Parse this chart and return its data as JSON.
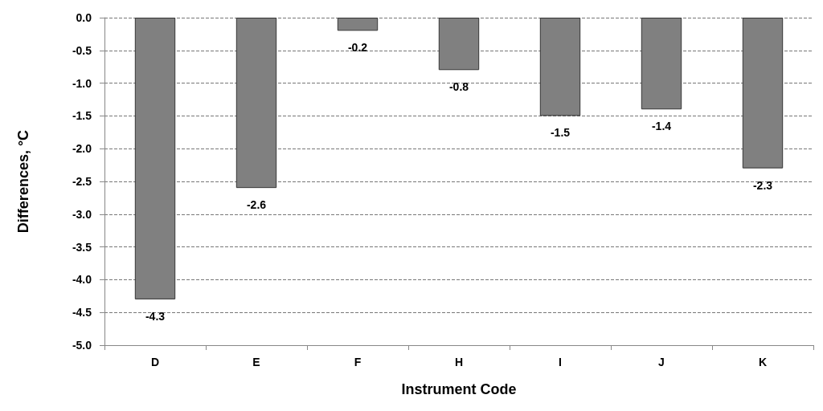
{
  "chart_data": {
    "type": "bar",
    "xlabel": "Instrument Code",
    "ylabel": "Differences, °C",
    "categories": [
      "D",
      "E",
      "F",
      "H",
      "I",
      "J",
      "K"
    ],
    "values": [
      -4.3,
      -2.6,
      -0.2,
      -0.8,
      -1.5,
      -1.4,
      -2.3
    ],
    "color": "#808080",
    "data_labels": true,
    "ylim": [
      -5,
      0
    ],
    "yticks": [
      {
        "value": -5,
        "label": "-5.0"
      },
      {
        "value": -4.5,
        "label": "-4.5"
      },
      {
        "value": -4,
        "label": "-4.0"
      },
      {
        "value": -3.5,
        "label": "-3.5"
      },
      {
        "value": -3,
        "label": "-3.0"
      },
      {
        "value": -2.5,
        "label": "-2.5"
      },
      {
        "value": -2,
        "label": "-2.0"
      },
      {
        "value": -1.5,
        "label": "-1.5"
      },
      {
        "value": -1,
        "label": "-1.0"
      },
      {
        "value": -0.5,
        "label": "-0.5"
      },
      {
        "value": 0,
        "label": "0.0"
      }
    ],
    "grid": "y"
  }
}
